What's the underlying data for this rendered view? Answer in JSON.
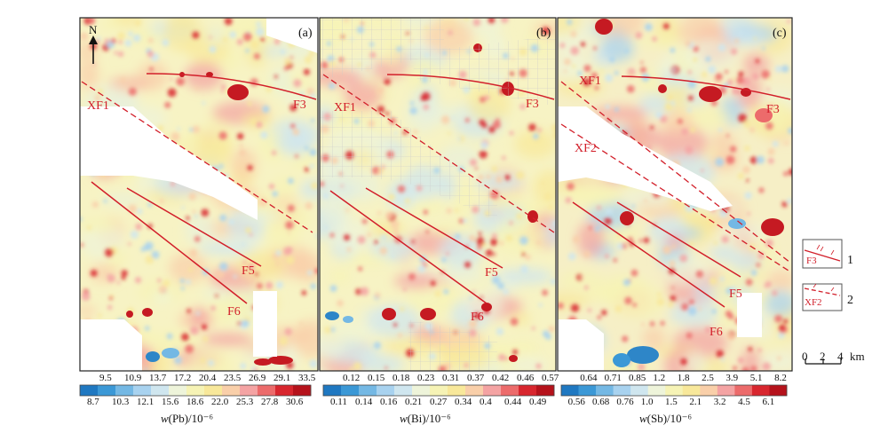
{
  "panels": [
    {
      "tag": "(a)",
      "north": "N",
      "faults": [
        "XF1",
        "F3",
        "F5",
        "F6"
      ],
      "colorbar": {
        "unit_prefix": "w",
        "unit_rest": "(Pb)/10⁻⁶",
        "top": [
          "9.5",
          "10.9",
          "13.7",
          "17.2",
          "20.4",
          "23.5",
          "26.9",
          "29.1",
          "33.5"
        ],
        "bottom": [
          "8.7",
          "10.3",
          "12.1",
          "15.6",
          "18.6",
          "22.0",
          "25.3",
          "27.8",
          "30.6"
        ]
      }
    },
    {
      "tag": "(b)",
      "faults": [
        "XF1",
        "F3",
        "F5",
        "F6"
      ],
      "colorbar": {
        "unit_prefix": "w",
        "unit_rest": "(Bi)/10⁻⁶",
        "top": [
          "0.12",
          "0.15",
          "0.18",
          "0.23",
          "0.31",
          "0.37",
          "0.42",
          "0.46",
          "0.57"
        ],
        "bottom": [
          "0.11",
          "0.14",
          "0.16",
          "0.21",
          "0.27",
          "0.34",
          "0.4",
          "0.44",
          "0.49"
        ]
      }
    },
    {
      "tag": "(c)",
      "faults": [
        "XF1",
        "XF2",
        "F3",
        "F5",
        "F6"
      ],
      "colorbar": {
        "unit_prefix": "w",
        "unit_rest": "(Sb)/10⁻⁶",
        "top": [
          "0.64",
          "0.71",
          "0.85",
          "1.2",
          "1.8",
          "2.5",
          "3.9",
          "5.1",
          "8.2"
        ],
        "bottom": [
          "0.56",
          "0.68",
          "0.76",
          "1.0",
          "1.5",
          "2.1",
          "3.2",
          "4.5",
          "6.1"
        ]
      }
    }
  ],
  "legend": [
    {
      "sample": "F3",
      "number": "1"
    },
    {
      "sample": "XF2",
      "number": "2"
    }
  ],
  "scale_bar": {
    "ticks": [
      "0",
      "2",
      "4"
    ],
    "unit": "km"
  },
  "colors": {
    "ramp": [
      "#1f78c1",
      "#3b98d6",
      "#74b8e4",
      "#a8d2ef",
      "#cfe6ef",
      "#eef4da",
      "#f6f3b5",
      "#f8e89a",
      "#f9cfa9",
      "#f4a3a3",
      "#ec6b6b",
      "#d8262e",
      "#b5121b"
    ],
    "fault": "#d21f2a"
  }
}
